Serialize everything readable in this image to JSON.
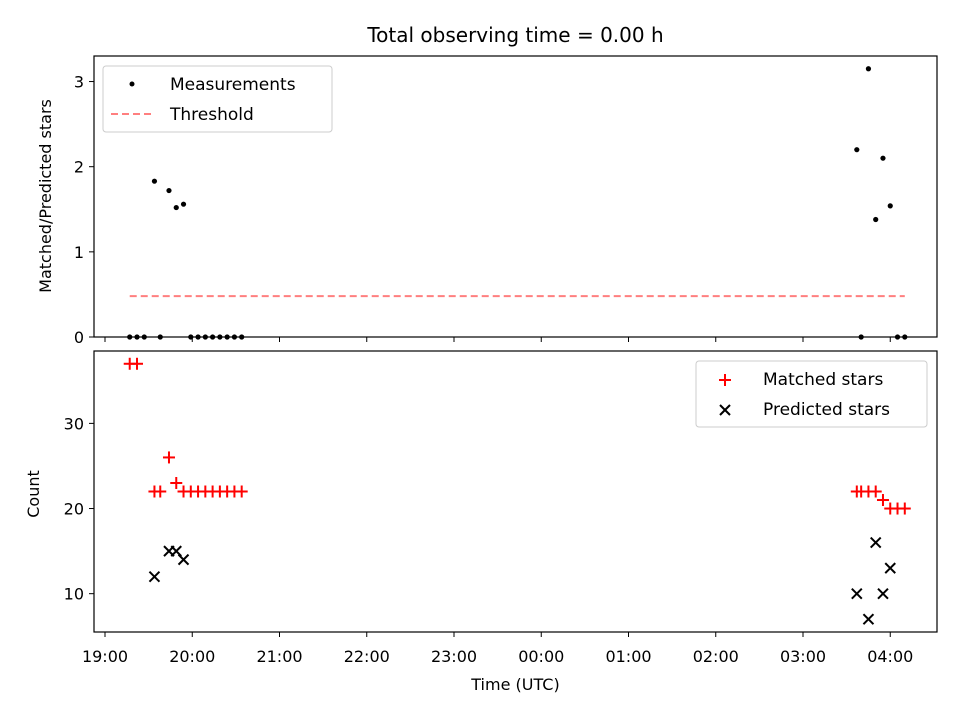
{
  "chart_data": [
    {
      "type": "scatter",
      "title": "Total observing time = 0.00 h",
      "xlabel": "",
      "ylabel": "Matched/Predicted stars",
      "ylim": [
        0,
        3.3
      ],
      "yticks": [
        "0",
        "1",
        "2",
        "3"
      ],
      "grid": false,
      "legend": {
        "placement": "top-left",
        "entries": [
          "Measurements",
          "Threshold"
        ]
      },
      "series": [
        {
          "name": "Measurements",
          "color": "#000000",
          "marker": "dot",
          "x": [
            "19:17",
            "19:22",
            "19:27",
            "19:34",
            "19:38",
            "19:44",
            "19:49",
            "19:54",
            "19:59",
            "20:04",
            "20:09",
            "20:14",
            "20:19",
            "20:24",
            "20:29",
            "20:34",
            "03:37",
            "03:40",
            "03:45",
            "03:50",
            "03:55",
            "04:00",
            "04:05",
            "04:10"
          ],
          "y": [
            0,
            0,
            0,
            1.83,
            0,
            1.72,
            1.52,
            1.56,
            0,
            0,
            0,
            0,
            0,
            0,
            0,
            0,
            2.2,
            0,
            3.15,
            1.38,
            2.1,
            1.54,
            0,
            0
          ]
        },
        {
          "name": "Threshold",
          "color": "#ff7f7f",
          "style": "dashed",
          "x": [
            "19:17",
            "04:10"
          ],
          "y": [
            0.48,
            0.48
          ]
        }
      ]
    },
    {
      "type": "scatter",
      "title": "",
      "xlabel": "Time (UTC)",
      "ylabel": "Count",
      "ylim": [
        5.5,
        38.5
      ],
      "yticks": [
        "10",
        "20",
        "30"
      ],
      "xticks": [
        "19:00",
        "20:00",
        "21:00",
        "22:00",
        "23:00",
        "00:00",
        "01:00",
        "02:00",
        "03:00",
        "04:00"
      ],
      "grid": false,
      "legend": {
        "placement": "top-right",
        "entries": [
          "Matched stars",
          "Predicted stars"
        ]
      },
      "series": [
        {
          "name": "Matched stars",
          "color": "#ff0000",
          "marker": "plus",
          "x": [
            "19:17",
            "19:22",
            "19:34",
            "19:38",
            "19:44",
            "19:49",
            "19:54",
            "19:59",
            "20:04",
            "20:09",
            "20:14",
            "20:19",
            "20:24",
            "20:29",
            "20:34",
            "03:37",
            "03:40",
            "03:45",
            "03:50",
            "03:55",
            "04:00",
            "04:05",
            "04:10"
          ],
          "y": [
            37,
            37,
            22,
            22,
            26,
            23,
            22,
            22,
            22,
            22,
            22,
            22,
            22,
            22,
            22,
            22,
            22,
            22,
            22,
            21,
            20,
            20,
            20
          ]
        },
        {
          "name": "Predicted stars",
          "color": "#000000",
          "marker": "x",
          "x": [
            "19:34",
            "19:44",
            "19:49",
            "19:54",
            "03:37",
            "03:45",
            "03:50",
            "03:55",
            "04:00"
          ],
          "y": [
            12,
            15,
            15,
            14,
            10,
            7,
            16,
            10,
            13
          ]
        }
      ]
    }
  ]
}
